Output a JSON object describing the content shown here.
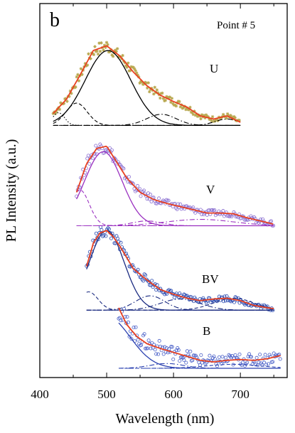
{
  "chart_data": {
    "type": "line",
    "panel_label": "b",
    "point_label": "Point # 5",
    "xlabel": "Wavelength (nm)",
    "ylabel": "PL Intensity (a.u.)",
    "xlim": [
      400,
      770
    ],
    "x_ticks": [
      400,
      500,
      600,
      700
    ],
    "y_ticks_shown": false,
    "grid": false,
    "legend": "none",
    "y_units": "relative intensity, normalized per spectrum (1 = spectrum peak); spectra are stacked with vertical offsets",
    "spectra": [
      {
        "name": "U",
        "baseline_offset": 3.05,
        "color": "#b8a850",
        "fit_color": "#e84020",
        "component_color": "#000000",
        "data_x": [
          420,
          440,
          460,
          480,
          500,
          520,
          540,
          560,
          580,
          600,
          620,
          640,
          660,
          680,
          700
        ],
        "data_y": [
          0.15,
          0.33,
          0.63,
          0.94,
          1.0,
          0.87,
          0.67,
          0.5,
          0.38,
          0.3,
          0.23,
          0.12,
          0.08,
          0.12,
          0.04
        ],
        "components": [
          {
            "style": "dotted",
            "center": 428,
            "width": 9,
            "height": 0.16
          },
          {
            "style": "dashed",
            "center": 455,
            "width": 16,
            "height": 0.28
          },
          {
            "style": "solid",
            "center": 502,
            "width": 34,
            "height": 0.94
          },
          {
            "style": "dashdot",
            "center": 582,
            "width": 22,
            "height": 0.14
          },
          {
            "style": "dashdot",
            "center": 680,
            "width": 18,
            "height": 0.08
          }
        ]
      },
      {
        "name": "V",
        "baseline_offset": 1.79,
        "color": "#8a6fd0",
        "fit_color": "#e84020",
        "component_color": "#9a30c0",
        "data_x": [
          455,
          470,
          485,
          500,
          515,
          530,
          550,
          570,
          590,
          610,
          630,
          650,
          670,
          690,
          710,
          730,
          750
        ],
        "data_y": [
          0.42,
          0.78,
          0.97,
          1.0,
          0.8,
          0.6,
          0.42,
          0.33,
          0.28,
          0.24,
          0.2,
          0.16,
          0.16,
          0.15,
          0.1,
          0.06,
          0.02
        ],
        "components": [
          {
            "style": "dashed",
            "center": 460,
            "width": 14,
            "height": 0.45
          },
          {
            "style": "solid",
            "center": 495,
            "width": 28,
            "height": 0.93
          },
          {
            "style": "dashdot",
            "center": 560,
            "width": 22,
            "height": 0.06
          },
          {
            "style": "dashdot",
            "center": 640,
            "width": 50,
            "height": 0.08
          }
        ]
      },
      {
        "name": "BV",
        "baseline_offset": 0.73,
        "color": "#2a4ab0",
        "fit_color": "#e84020",
        "component_color": "#1a2a80",
        "data_x": [
          470,
          480,
          490,
          500,
          510,
          520,
          540,
          560,
          580,
          600,
          620,
          640,
          660,
          680,
          700,
          720,
          740,
          750
        ],
        "data_y": [
          0.55,
          0.84,
          0.97,
          1.0,
          0.92,
          0.8,
          0.52,
          0.38,
          0.26,
          0.2,
          0.15,
          0.12,
          0.14,
          0.15,
          0.12,
          0.06,
          0.03,
          0.02
        ],
        "components": [
          {
            "style": "dashed",
            "center": 473,
            "width": 14,
            "height": 0.23
          },
          {
            "style": "solid",
            "center": 500,
            "width": 26,
            "height": 1.0
          },
          {
            "style": "dashdot",
            "center": 565,
            "width": 22,
            "height": 0.18
          },
          {
            "style": "dashdot",
            "center": 610,
            "width": 30,
            "height": 0.14
          },
          {
            "style": "dashed",
            "center": 690,
            "width": 30,
            "height": 0.15
          }
        ]
      },
      {
        "name": "B",
        "baseline_offset": 0.0,
        "color": "#4a60c8",
        "fit_color": "#e84020",
        "component_color": "#2a40b0",
        "data_x": [
          518,
          530,
          545,
          560,
          580,
          600,
          620,
          640,
          660,
          680,
          700,
          720,
          740,
          760
        ],
        "data_y": [
          0.76,
          0.55,
          0.4,
          0.31,
          0.25,
          0.2,
          0.15,
          0.1,
          0.08,
          0.1,
          0.11,
          0.1,
          0.12,
          0.16
        ],
        "components": [
          {
            "style": "solid",
            "center": 500,
            "width": 35,
            "height": 0.65
          },
          {
            "style": "dashdot",
            "center": 590,
            "width": 25,
            "height": 0.06
          },
          {
            "style": "dashed",
            "center": 690,
            "width": 40,
            "height": 0.05
          }
        ]
      }
    ]
  }
}
